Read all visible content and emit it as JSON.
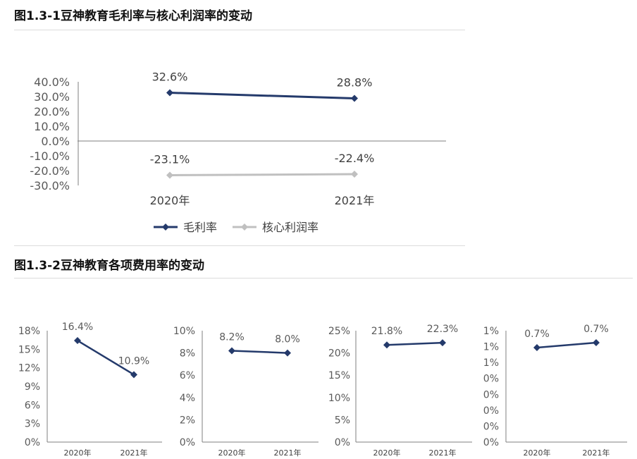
{
  "headings": {
    "fig1": "图1.3-1豆神教育毛利率与核心利润率的变动",
    "fig2": "图1.3-2豆神教育各项费用率的变动"
  },
  "colors": {
    "gross": "#243a6b",
    "core": "#c0c0c0",
    "axis": "#7f7f7f",
    "text": "#404040"
  },
  "chart_data": [
    {
      "type": "line",
      "title": "图1.3-1豆神教育毛利率与核心利润率的变动",
      "categories": [
        "2020年",
        "2021年"
      ],
      "series": [
        {
          "name": "毛利率",
          "values": [
            32.6,
            28.8
          ],
          "labels": [
            "32.6%",
            "28.8%"
          ],
          "color": "#243a6b"
        },
        {
          "name": "核心利润率",
          "values": [
            -23.1,
            -22.4
          ],
          "labels": [
            "-23.1%",
            "-22.4%"
          ],
          "color": "#c0c0c0"
        }
      ],
      "ylim": [
        -30,
        40
      ],
      "yticks": [
        "40.0%",
        "30.0%",
        "20.0%",
        "10.0%",
        "0.0%",
        "-10.0%",
        "-20.0%",
        "-30.0%"
      ],
      "legend": "bottom"
    },
    {
      "type": "line",
      "categories": [
        "2020年",
        "2021年"
      ],
      "series": [
        {
          "values": [
            16.4,
            10.9
          ],
          "labels": [
            "16.4%",
            "10.9%"
          ],
          "color": "#243a6b"
        }
      ],
      "ylim": [
        0,
        18
      ],
      "yticks": [
        "18%",
        "15%",
        "12%",
        "9%",
        "6%",
        "3%",
        "0%"
      ]
    },
    {
      "type": "line",
      "categories": [
        "2020年",
        "2021年"
      ],
      "series": [
        {
          "values": [
            8.2,
            8.0
          ],
          "labels": [
            "8.2%",
            "8.0%"
          ],
          "color": "#243a6b"
        }
      ],
      "ylim": [
        0,
        10
      ],
      "yticks": [
        "10%",
        "8%",
        "6%",
        "4%",
        "2%",
        "0%"
      ]
    },
    {
      "type": "line",
      "categories": [
        "2020年",
        "2021年"
      ],
      "series": [
        {
          "values": [
            21.8,
            22.3
          ],
          "labels": [
            "21.8%",
            "22.3%"
          ],
          "color": "#243a6b"
        }
      ],
      "ylim": [
        0,
        25
      ],
      "yticks": [
        "25%",
        "20%",
        "15%",
        "10%",
        "5%",
        "0%"
      ]
    },
    {
      "type": "line",
      "categories": [
        "2020年",
        "2021年"
      ],
      "series": [
        {
          "values": [
            0.7,
            0.7
          ],
          "labels": [
            "0.7%",
            "0.7%"
          ],
          "color": "#243a6b"
        }
      ],
      "ylim": [
        0,
        1
      ],
      "yticks": [
        "1%",
        "1%",
        "1%",
        "0%",
        "0%",
        "0%",
        "0%",
        "0%"
      ]
    }
  ]
}
